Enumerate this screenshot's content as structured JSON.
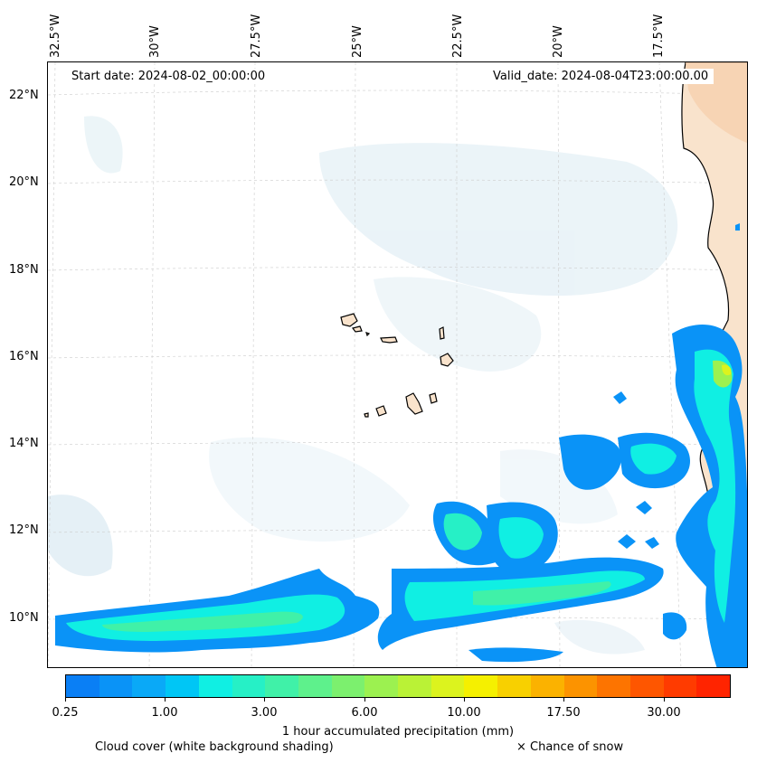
{
  "map": {
    "start_date": "Start date: 2024-08-02_00:00:00",
    "valid_date": "Valid_date: 2024-08-04T23:00:00.00",
    "lon_labels": [
      "32.5°W",
      "30°W",
      "27.5°W",
      "25°W",
      "22.5°W",
      "20°W",
      "17.5°W"
    ],
    "lat_labels": [
      "22°N",
      "20°N",
      "18°N",
      "16°N",
      "14°N",
      "12°N",
      "10°N"
    ],
    "colorbar_colors": [
      "#0a7ff5",
      "#0a93f7",
      "#0aa9f7",
      "#00c6f5",
      "#10efe3",
      "#26f0c6",
      "#40f1a8",
      "#5ef18c",
      "#7cf06e",
      "#9cf150",
      "#baf236",
      "#dcf31e",
      "#f5f000",
      "#f8d000",
      "#fbb200",
      "#fc9300",
      "#fd7400",
      "#fe5600",
      "#ff3b00",
      "#ff2400"
    ],
    "colorbar_ticks": [
      "0.25",
      "1.00",
      "3.00",
      "6.00",
      "10.00",
      "17.50",
      "30.00"
    ],
    "colorbar_label": "1 hour accumulated precipitation (mm)",
    "cloud_label": "Cloud cover (white background shading)",
    "snow_label": "× Chance of snow",
    "land_color": "#f9e3cc",
    "cloud_color": "#e4f0f6"
  }
}
